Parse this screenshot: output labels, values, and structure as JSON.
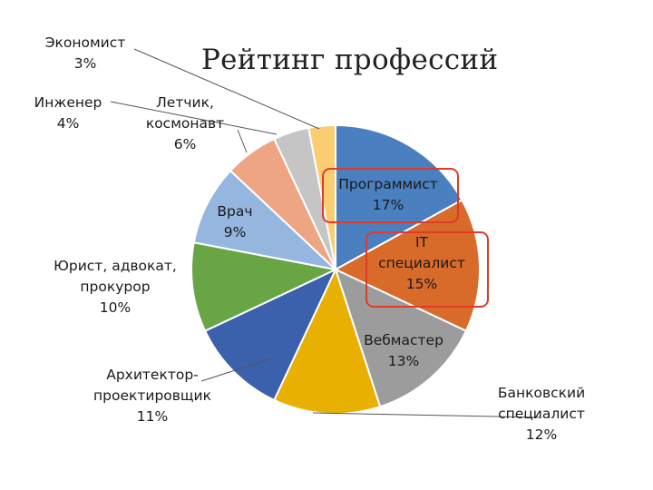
{
  "chart_data": {
    "type": "pie",
    "title": "Рейтинг профессий",
    "start": "12 o'clock, clockwise",
    "slices": [
      {
        "name": "Программист",
        "label_lines": [
          "Программист",
          "17%"
        ],
        "value": 17,
        "color": "#4a7fc0",
        "highlighted": true
      },
      {
        "name": "IT специалист",
        "label_lines": [
          "IT",
          "специалист",
          "15%"
        ],
        "value": 15,
        "color": "#d86a2a",
        "highlighted": true
      },
      {
        "name": "Вебмастер",
        "label_lines": [
          "Вебмастер",
          "13%"
        ],
        "value": 13,
        "color": "#9c9c9c",
        "highlighted": false
      },
      {
        "name": "Банковский специалист",
        "label_lines": [
          "Банковский",
          "специалист",
          "12%"
        ],
        "value": 12,
        "color": "#e8b000",
        "highlighted": false
      },
      {
        "name": "Архитектор-проектировщик",
        "label_lines": [
          "Архитектор-",
          "проектировщик",
          "11%"
        ],
        "value": 11,
        "color": "#3b60ac",
        "highlighted": false
      },
      {
        "name": "Юрист, адвокат, прокурор",
        "label_lines": [
          "Юрист, адвокат,",
          "прокурор",
          "10%"
        ],
        "value": 10,
        "color": "#6aa545",
        "highlighted": false
      },
      {
        "name": "Врач",
        "label_lines": [
          "Врач",
          "9%"
        ],
        "value": 9,
        "color": "#95b6de",
        "highlighted": false
      },
      {
        "name": "Летчик, космонавт",
        "label_lines": [
          "Летчик,",
          "космонавт",
          "6%"
        ],
        "value": 6,
        "color": "#eda584",
        "highlighted": false
      },
      {
        "name": "Инженер",
        "label_lines": [
          "Инженер",
          "4%"
        ],
        "value": 4,
        "color": "#c5c5c5",
        "highlighted": false
      },
      {
        "name": "Экономист",
        "label_lines": [
          "Экономист",
          "3%"
        ],
        "value": 3,
        "color": "#fbcd72",
        "highlighted": false
      }
    ],
    "highlight_color": "#e03a2a",
    "legend": "none",
    "grid": false
  }
}
